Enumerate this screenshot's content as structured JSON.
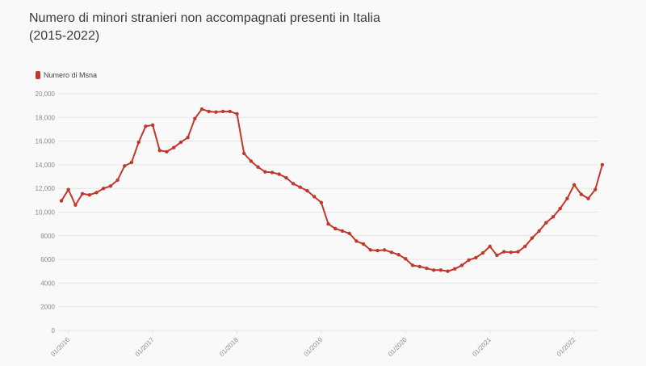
{
  "title_line1": "Numero di minori stranieri non accompagnati presenti in Italia",
  "title_line2": "(2015-2022)",
  "colors": {
    "series": "#c0392b",
    "grid": "#e4e4e4",
    "axis_text": "#8a8a8a",
    "background": "#f9f9f9"
  },
  "chart_data": {
    "type": "line",
    "title": "Numero di minori stranieri non accompagnati presenti in Italia (2015-2022)",
    "ylim": [
      0,
      20000
    ],
    "yticks": [
      0,
      2000,
      4000,
      6000,
      8000,
      10000,
      12000,
      14000,
      16000,
      18000,
      20000
    ],
    "ytick_labels": [
      "0",
      "2000",
      "4000",
      "6000",
      "8000",
      "10,000",
      "12,000",
      "14,000",
      "16,000",
      "18,000",
      "20,000"
    ],
    "xticks": [
      "01/2016",
      "01/2017",
      "01/2018",
      "01/2019",
      "01/2020",
      "01/2021",
      "01/2022"
    ],
    "x_range": [
      "2015-12",
      "2022-04"
    ],
    "grid": true,
    "legend": "top-left",
    "series": [
      {
        "name": "Numero di Msna",
        "values": [
          [
            "2015-12",
            10950
          ],
          [
            "2016-01",
            11900
          ],
          [
            "2016-02",
            10600
          ],
          [
            "2016-03",
            11550
          ],
          [
            "2016-04",
            11450
          ],
          [
            "2016-05",
            11650
          ],
          [
            "2016-06",
            12000
          ],
          [
            "2016-07",
            12200
          ],
          [
            "2016-08",
            12700
          ],
          [
            "2016-09",
            13900
          ],
          [
            "2016-10",
            14200
          ],
          [
            "2016-11",
            15900
          ],
          [
            "2016-12",
            17250
          ],
          [
            "2017-01",
            17350
          ],
          [
            "2017-02",
            15200
          ],
          [
            "2017-03",
            15100
          ],
          [
            "2017-04",
            15450
          ],
          [
            "2017-05",
            15900
          ],
          [
            "2017-06",
            16300
          ],
          [
            "2017-07",
            17900
          ],
          [
            "2017-08",
            18700
          ],
          [
            "2017-09",
            18500
          ],
          [
            "2017-10",
            18450
          ],
          [
            "2017-11",
            18500
          ],
          [
            "2017-12",
            18500
          ],
          [
            "2018-01",
            18300
          ],
          [
            "2018-02",
            14950
          ],
          [
            "2018-03",
            14300
          ],
          [
            "2018-04",
            13800
          ],
          [
            "2018-05",
            13400
          ],
          [
            "2018-06",
            13350
          ],
          [
            "2018-07",
            13200
          ],
          [
            "2018-08",
            12900
          ],
          [
            "2018-09",
            12400
          ],
          [
            "2018-10",
            12100
          ],
          [
            "2018-11",
            11800
          ],
          [
            "2018-12",
            11300
          ],
          [
            "2019-01",
            10800
          ],
          [
            "2019-02",
            9000
          ],
          [
            "2019-03",
            8600
          ],
          [
            "2019-04",
            8400
          ],
          [
            "2019-05",
            8200
          ],
          [
            "2019-06",
            7550
          ],
          [
            "2019-07",
            7300
          ],
          [
            "2019-08",
            6800
          ],
          [
            "2019-09",
            6750
          ],
          [
            "2019-10",
            6800
          ],
          [
            "2019-11",
            6600
          ],
          [
            "2019-12",
            6400
          ],
          [
            "2020-01",
            6050
          ],
          [
            "2020-02",
            5500
          ],
          [
            "2020-03",
            5400
          ],
          [
            "2020-04",
            5250
          ],
          [
            "2020-05",
            5100
          ],
          [
            "2020-06",
            5100
          ],
          [
            "2020-07",
            5000
          ],
          [
            "2020-08",
            5200
          ],
          [
            "2020-09",
            5500
          ],
          [
            "2020-10",
            5950
          ],
          [
            "2020-11",
            6150
          ],
          [
            "2020-12",
            6550
          ],
          [
            "2021-01",
            7100
          ],
          [
            "2021-02",
            6350
          ],
          [
            "2021-03",
            6650
          ],
          [
            "2021-04",
            6600
          ],
          [
            "2021-05",
            6650
          ],
          [
            "2021-06",
            7100
          ],
          [
            "2021-07",
            7800
          ],
          [
            "2021-08",
            8400
          ],
          [
            "2021-09",
            9100
          ],
          [
            "2021-10",
            9600
          ],
          [
            "2021-11",
            10300
          ],
          [
            "2021-12",
            11150
          ],
          [
            "2022-01",
            12300
          ],
          [
            "2022-02",
            11500
          ],
          [
            "2022-03",
            11150
          ],
          [
            "2022-04",
            11900
          ],
          [
            "2022-05",
            14000
          ]
        ]
      }
    ]
  }
}
